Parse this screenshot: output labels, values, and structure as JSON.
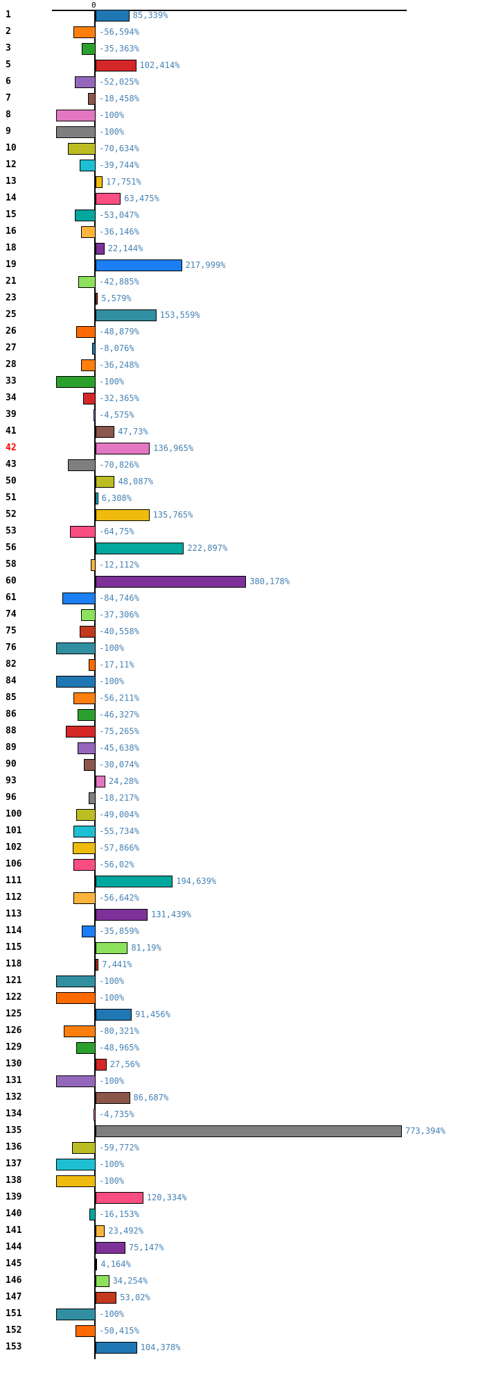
{
  "chart_data": {
    "type": "bar",
    "orientation": "horizontal",
    "title": "",
    "xlabel": "",
    "ylabel": "",
    "grid": false,
    "legend": false,
    "axis": {
      "zero_tick_label": "0",
      "zero_tick_position": "top",
      "value_axis_range_percent": [
        -110,
        786
      ]
    },
    "value_suffix": "%",
    "decimal_separator": ",",
    "colors": {
      "value_label": "#4682b4",
      "row_label": "#000000",
      "highlight_row_label": "#ff0000",
      "bar_border": "#000000",
      "palette": [
        "#1f77b4",
        "#ff7f0e",
        "#2ca02c",
        "#d62728",
        "#9467bd",
        "#8c564b",
        "#e377c2",
        "#7f7f7f",
        "#bcbd22",
        "#1fbfd3",
        "#efbb0e",
        "#fa4d82",
        "#02a79d",
        "#fbb53c",
        "#7e3299",
        "#1b7ef2",
        "#8ce25c",
        "#c2391d",
        "#318fa1",
        "#ff6a00"
      ]
    },
    "rows": [
      {
        "label": "1",
        "value": 85.339,
        "display": "85,339%"
      },
      {
        "label": "2",
        "value": -56.594,
        "display": "-56,594%"
      },
      {
        "label": "3",
        "value": -35.363,
        "display": "-35,363%"
      },
      {
        "label": "5",
        "value": 102.414,
        "display": "102,414%"
      },
      {
        "label": "6",
        "value": -52.025,
        "display": "-52,025%"
      },
      {
        "label": "7",
        "value": -18.458,
        "display": "-18,458%"
      },
      {
        "label": "8",
        "value": -100,
        "display": "-100%"
      },
      {
        "label": "9",
        "value": -100,
        "display": "-100%"
      },
      {
        "label": "10",
        "value": -70.634,
        "display": "-70,634%"
      },
      {
        "label": "12",
        "value": -39.744,
        "display": "-39,744%"
      },
      {
        "label": "13",
        "value": 17.751,
        "display": "17,751%"
      },
      {
        "label": "14",
        "value": 63.475,
        "display": "63,475%"
      },
      {
        "label": "15",
        "value": -53.047,
        "display": "-53,047%"
      },
      {
        "label": "16",
        "value": -36.146,
        "display": "-36,146%"
      },
      {
        "label": "18",
        "value": 22.144,
        "display": "22,144%"
      },
      {
        "label": "19",
        "value": 217.999,
        "display": "217,999%"
      },
      {
        "label": "21",
        "value": -42.885,
        "display": "-42,885%"
      },
      {
        "label": "23",
        "value": 5.579,
        "display": "5,579%"
      },
      {
        "label": "25",
        "value": 153.559,
        "display": "153,559%"
      },
      {
        "label": "26",
        "value": -48.879,
        "display": "-48,879%"
      },
      {
        "label": "27",
        "value": -8.076,
        "display": "-8,076%"
      },
      {
        "label": "28",
        "value": -36.248,
        "display": "-36,248%"
      },
      {
        "label": "33",
        "value": -100,
        "display": "-100%"
      },
      {
        "label": "34",
        "value": -32.365,
        "display": "-32,365%"
      },
      {
        "label": "39",
        "value": -4.575,
        "display": "-4,575%"
      },
      {
        "label": "41",
        "value": 47.73,
        "display": "47,73%"
      },
      {
        "label": "42",
        "value": 136.965,
        "display": "136,965%",
        "highlight": true
      },
      {
        "label": "43",
        "value": -70.826,
        "display": "-70,826%"
      },
      {
        "label": "50",
        "value": 48.087,
        "display": "48,087%"
      },
      {
        "label": "51",
        "value": 6.308,
        "display": "6,308%"
      },
      {
        "label": "52",
        "value": 135.765,
        "display": "135,765%"
      },
      {
        "label": "53",
        "value": -64.75,
        "display": "-64,75%"
      },
      {
        "label": "56",
        "value": 222.897,
        "display": "222,897%"
      },
      {
        "label": "58",
        "value": -12.112,
        "display": "-12,112%"
      },
      {
        "label": "60",
        "value": 380.178,
        "display": "380,178%"
      },
      {
        "label": "61",
        "value": -84.746,
        "display": "-84,746%"
      },
      {
        "label": "74",
        "value": -37.306,
        "display": "-37,306%"
      },
      {
        "label": "75",
        "value": -40.558,
        "display": "-40,558%"
      },
      {
        "label": "76",
        "value": -100,
        "display": "-100%"
      },
      {
        "label": "82",
        "value": -17.11,
        "display": "-17,11%"
      },
      {
        "label": "84",
        "value": -100,
        "display": "-100%"
      },
      {
        "label": "85",
        "value": -56.211,
        "display": "-56,211%"
      },
      {
        "label": "86",
        "value": -46.327,
        "display": "-46,327%"
      },
      {
        "label": "88",
        "value": -75.265,
        "display": "-75,265%"
      },
      {
        "label": "89",
        "value": -45.638,
        "display": "-45,638%"
      },
      {
        "label": "90",
        "value": -30.074,
        "display": "-30,074%"
      },
      {
        "label": "93",
        "value": 24.28,
        "display": "24,28%"
      },
      {
        "label": "96",
        "value": -18.217,
        "display": "-18,217%"
      },
      {
        "label": "100",
        "value": -49.004,
        "display": "-49,004%"
      },
      {
        "label": "101",
        "value": -55.734,
        "display": "-55,734%"
      },
      {
        "label": "102",
        "value": -57.866,
        "display": "-57,866%"
      },
      {
        "label": "106",
        "value": -56.02,
        "display": "-56,02%"
      },
      {
        "label": "111",
        "value": 194.639,
        "display": "194,639%"
      },
      {
        "label": "112",
        "value": -56.642,
        "display": "-56,642%"
      },
      {
        "label": "113",
        "value": 131.439,
        "display": "131,439%"
      },
      {
        "label": "114",
        "value": -35.859,
        "display": "-35,859%"
      },
      {
        "label": "115",
        "value": 81.19,
        "display": "81,19%"
      },
      {
        "label": "118",
        "value": 7.441,
        "display": "7,441%"
      },
      {
        "label": "121",
        "value": -100,
        "display": "-100%"
      },
      {
        "label": "122",
        "value": -100,
        "display": "-100%"
      },
      {
        "label": "125",
        "value": 91.456,
        "display": "91,456%"
      },
      {
        "label": "126",
        "value": -80.321,
        "display": "-80,321%"
      },
      {
        "label": "129",
        "value": -48.965,
        "display": "-48,965%"
      },
      {
        "label": "130",
        "value": 27.56,
        "display": "27,56%"
      },
      {
        "label": "131",
        "value": -100,
        "display": "-100%"
      },
      {
        "label": "132",
        "value": 86.687,
        "display": "86,687%"
      },
      {
        "label": "134",
        "value": -4.735,
        "display": "-4,735%"
      },
      {
        "label": "135",
        "value": 773.394,
        "display": "773,394%"
      },
      {
        "label": "136",
        "value": -59.772,
        "display": "-59,772%"
      },
      {
        "label": "137",
        "value": -100,
        "display": "-100%"
      },
      {
        "label": "138",
        "value": -100,
        "display": "-100%"
      },
      {
        "label": "139",
        "value": 120.334,
        "display": "120,334%"
      },
      {
        "label": "140",
        "value": -16.153,
        "display": "-16,153%"
      },
      {
        "label": "141",
        "value": 23.492,
        "display": "23,492%"
      },
      {
        "label": "144",
        "value": 75.147,
        "display": "75,147%"
      },
      {
        "label": "145",
        "value": 4.164,
        "display": "4,164%"
      },
      {
        "label": "146",
        "value": 34.254,
        "display": "34,254%"
      },
      {
        "label": "147",
        "value": 53.02,
        "display": "53,02%"
      },
      {
        "label": "151",
        "value": -100,
        "display": "-100%"
      },
      {
        "label": "152",
        "value": -50.415,
        "display": "-50,415%"
      },
      {
        "label": "153",
        "value": 104.378,
        "display": "104,378%"
      }
    ]
  }
}
